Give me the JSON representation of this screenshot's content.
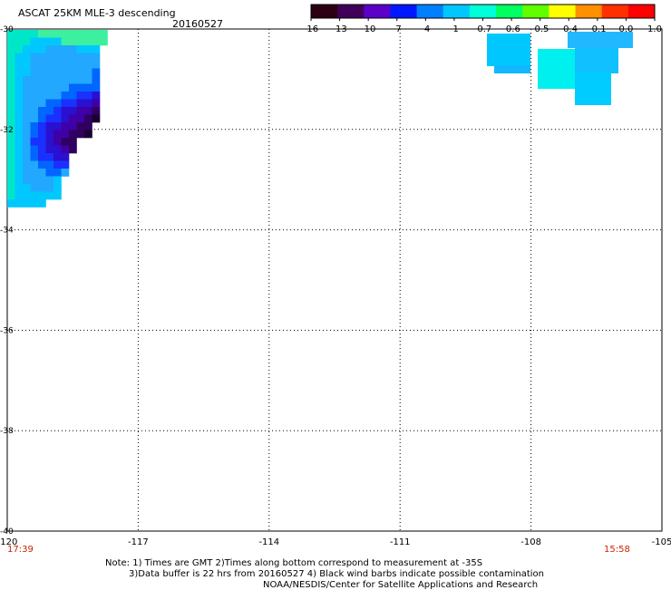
{
  "header": {
    "title": "ASCAT 25KM MLE-3 descending",
    "date": "20160527"
  },
  "colorbar": {
    "labels": [
      "-16",
      "-13",
      "-10",
      "-7",
      "-4",
      "-1",
      "-0.7",
      "-0.6",
      "-0.5",
      "-0.4",
      "-0.1",
      "0.0",
      "1.0"
    ],
    "colors": [
      "#2b0012",
      "#40005a",
      "#5a00c8",
      "#0018ff",
      "#0080ff",
      "#00c8ff",
      "#00ffd8",
      "#00ff60",
      "#60ff00",
      "#ffff00",
      "#ff9000",
      "#ff3000",
      "#ff0000"
    ]
  },
  "map": {
    "x_ticks": [
      "-120",
      "-117",
      "-114",
      "-111",
      "-108",
      "-105"
    ],
    "y_ticks": [
      "-30",
      "-32",
      "-34",
      "-36",
      "-38",
      "-40"
    ],
    "time_left": "17:39",
    "time_right": "15:58"
  },
  "notes": {
    "line1": "Note: 1) Times are GMT 2)Times along bottom correspond to measurement at -35S",
    "line2": "3)Data buffer is 22 hrs from 20160527 4) Black wind barbs indicate possible contamination",
    "line3": "NOAA/NESDIS/Center for Satellite Applications and Research"
  }
}
